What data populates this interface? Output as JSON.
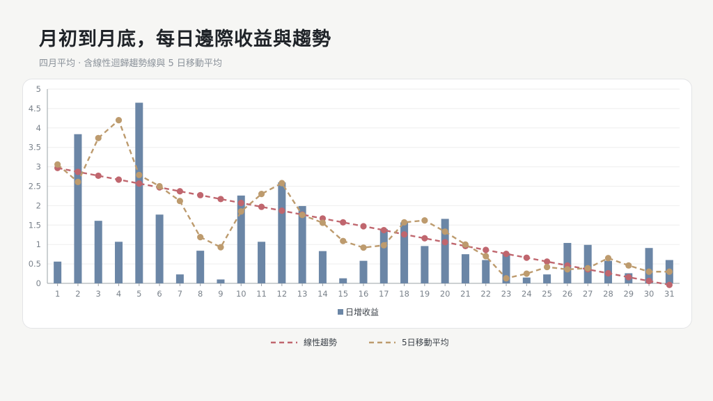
{
  "title": "月初到月底，每日邊際收益與趨勢",
  "subtitle": "四月平均 · 含線性迴歸趨勢線與 5 日移動平均",
  "colors": {
    "bar": "#6b86a6",
    "trend": "#c0666e",
    "moving_avg": "#bd9b6e",
    "grid": "#eeeeee",
    "axis": "#9aa0a6"
  },
  "chart_data": {
    "type": "bar",
    "categories": [
      "1",
      "2",
      "3",
      "4",
      "5",
      "6",
      "7",
      "8",
      "9",
      "10",
      "11",
      "12",
      "13",
      "14",
      "15",
      "16",
      "17",
      "18",
      "19",
      "20",
      "21",
      "22",
      "23",
      "24",
      "25",
      "26",
      "27",
      "28",
      "29",
      "30",
      "31"
    ],
    "ylim": [
      0,
      5
    ],
    "yticks": [
      "0",
      "0.5",
      "1",
      "1.5",
      "2",
      "2.5",
      "3",
      "3.5",
      "4",
      "4.5",
      "5"
    ],
    "grid": true,
    "legend_position": "bottom",
    "series": [
      {
        "name": "日增收益",
        "kind": "bar",
        "values": [
          0.56,
          3.84,
          1.61,
          1.07,
          4.65,
          1.77,
          0.23,
          0.84,
          0.1,
          2.26,
          1.07,
          2.6,
          1.99,
          0.83,
          0.13,
          0.58,
          1.4,
          1.57,
          0.96,
          1.66,
          0.75,
          0.6,
          0.77,
          0.15,
          0.23,
          1.04,
          0.99,
          0.58,
          0.26,
          0.91,
          0.6
        ]
      },
      {
        "name": "線性趨勢",
        "kind": "line",
        "style": "dashed",
        "values": [
          2.97,
          2.87,
          2.77,
          2.67,
          2.57,
          2.47,
          2.37,
          2.27,
          2.17,
          2.07,
          1.97,
          1.87,
          1.77,
          1.67,
          1.57,
          1.47,
          1.37,
          1.26,
          1.16,
          1.06,
          0.96,
          0.86,
          0.76,
          0.66,
          0.56,
          0.46,
          0.36,
          0.26,
          0.16,
          0.06,
          -0.04
        ]
      },
      {
        "name": "5日移動平均",
        "kind": "line",
        "style": "dashed",
        "values": [
          3.06,
          2.61,
          3.74,
          4.2,
          2.79,
          2.5,
          2.12,
          1.19,
          0.93,
          1.85,
          2.3,
          2.58,
          1.76,
          1.56,
          1.09,
          0.92,
          0.98,
          1.57,
          1.62,
          1.33,
          1.0,
          0.7,
          0.13,
          0.25,
          0.42,
          0.36,
          0.39,
          0.65,
          0.46,
          0.3,
          0.3
        ]
      }
    ]
  }
}
